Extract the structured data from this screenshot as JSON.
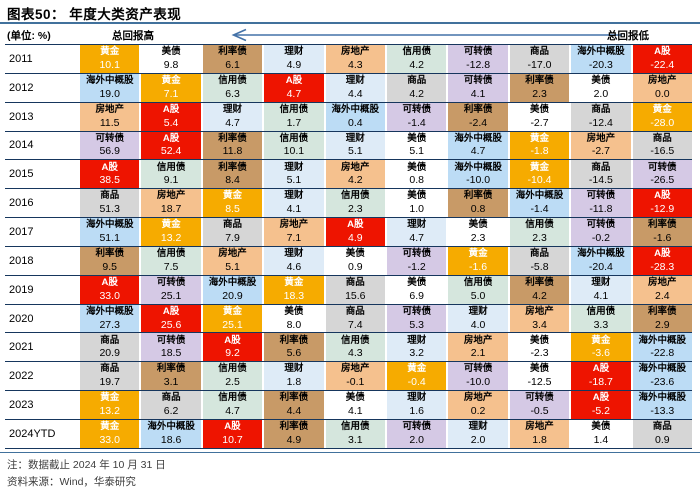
{
  "figure": {
    "title": "图表50： 年度大类资产表现",
    "unit_label": "(单位: %)",
    "high_label": "总回报高",
    "low_label": "总回报低",
    "note": "注：数据截止 2024 年 10 月 31 日",
    "source": "资料来源：Wind，华泰研究"
  },
  "colors": {
    "accent_line": "#41719C",
    "row_divider": "#16365D",
    "arrow": "#4472A8"
  },
  "assets": {
    "黄金": {
      "bg": "#F6AB00",
      "fg": "#FFFFFF"
    },
    "美债": {
      "bg": "#FFFFFF",
      "fg": "#000000"
    },
    "利率债": {
      "bg": "#C89A67",
      "fg": "#000000"
    },
    "理财": {
      "bg": "#DEEBF7",
      "fg": "#000000"
    },
    "房地产": {
      "bg": "#F5C18E",
      "fg": "#000000"
    },
    "信用债": {
      "bg": "#D5E6DD",
      "fg": "#000000"
    },
    "可转债": {
      "bg": "#D5C9E5",
      "fg": "#000000"
    },
    "商品": {
      "bg": "#D6D6D6",
      "fg": "#000000"
    },
    "海外中概股": {
      "bg": "#BCDCF5",
      "fg": "#000000"
    },
    "A股": {
      "bg": "#EE1400",
      "fg": "#FFFFFF"
    }
  },
  "chart_data": {
    "type": "table",
    "title": "年度大类资产表现",
    "unit": "%",
    "layout_hint": "each row = one year; 10 asset cells sorted left-to-right from highest to lowest total return",
    "rows": [
      {
        "year": "2011",
        "cells": [
          {
            "asset": "黄金",
            "value": "10.1"
          },
          {
            "asset": "美债",
            "value": "9.8"
          },
          {
            "asset": "利率债",
            "value": "6.1"
          },
          {
            "asset": "理财",
            "value": "4.9"
          },
          {
            "asset": "房地产",
            "value": "4.3"
          },
          {
            "asset": "信用债",
            "value": "4.2"
          },
          {
            "asset": "可转债",
            "value": "-12.8"
          },
          {
            "asset": "商品",
            "value": "-17.0"
          },
          {
            "asset": "海外中概股",
            "value": "-20.3"
          },
          {
            "asset": "A股",
            "value": "-22.4"
          }
        ]
      },
      {
        "year": "2012",
        "cells": [
          {
            "asset": "海外中概股",
            "value": "19.0"
          },
          {
            "asset": "黄金",
            "value": "7.1"
          },
          {
            "asset": "信用债",
            "value": "6.3"
          },
          {
            "asset": "A股",
            "value": "4.7"
          },
          {
            "asset": "理财",
            "value": "4.4"
          },
          {
            "asset": "商品",
            "value": "4.2"
          },
          {
            "asset": "可转债",
            "value": "4.1"
          },
          {
            "asset": "利率债",
            "value": "2.3"
          },
          {
            "asset": "美债",
            "value": "2.0"
          },
          {
            "asset": "房地产",
            "value": "0.0"
          }
        ]
      },
      {
        "year": "2013",
        "cells": [
          {
            "asset": "房地产",
            "value": "11.5"
          },
          {
            "asset": "A股",
            "value": "5.4"
          },
          {
            "asset": "理财",
            "value": "4.7"
          },
          {
            "asset": "信用债",
            "value": "1.7"
          },
          {
            "asset": "海外中概股",
            "value": "0.4"
          },
          {
            "asset": "可转债",
            "value": "-1.4"
          },
          {
            "asset": "利率债",
            "value": "-2.4"
          },
          {
            "asset": "美债",
            "value": "-2.7"
          },
          {
            "asset": "商品",
            "value": "-12.4"
          },
          {
            "asset": "黄金",
            "value": "-28.0"
          }
        ]
      },
      {
        "year": "2014",
        "cells": [
          {
            "asset": "可转债",
            "value": "56.9"
          },
          {
            "asset": "A股",
            "value": "52.4"
          },
          {
            "asset": "利率债",
            "value": "11.8"
          },
          {
            "asset": "信用债",
            "value": "10.1"
          },
          {
            "asset": "理财",
            "value": "5.1"
          },
          {
            "asset": "美债",
            "value": "5.1"
          },
          {
            "asset": "海外中概股",
            "value": "4.7"
          },
          {
            "asset": "黄金",
            "value": "-1.8"
          },
          {
            "asset": "房地产",
            "value": "-2.7"
          },
          {
            "asset": "商品",
            "value": "-16.5"
          }
        ]
      },
      {
        "year": "2015",
        "cells": [
          {
            "asset": "A股",
            "value": "38.5"
          },
          {
            "asset": "信用债",
            "value": "9.1"
          },
          {
            "asset": "利率债",
            "value": "8.4"
          },
          {
            "asset": "理财",
            "value": "5.1"
          },
          {
            "asset": "房地产",
            "value": "4.2"
          },
          {
            "asset": "美债",
            "value": "0.8"
          },
          {
            "asset": "海外中概股",
            "value": "-10.0"
          },
          {
            "asset": "黄金",
            "value": "-10.4"
          },
          {
            "asset": "商品",
            "value": "-14.5"
          },
          {
            "asset": "可转债",
            "value": "-26.5"
          }
        ]
      },
      {
        "year": "2016",
        "cells": [
          {
            "asset": "商品",
            "value": "51.3"
          },
          {
            "asset": "房地产",
            "value": "18.7"
          },
          {
            "asset": "黄金",
            "value": "8.5"
          },
          {
            "asset": "理财",
            "value": "4.1"
          },
          {
            "asset": "信用债",
            "value": "2.3"
          },
          {
            "asset": "美债",
            "value": "1.0"
          },
          {
            "asset": "利率债",
            "value": "0.8"
          },
          {
            "asset": "海外中概股",
            "value": "-1.4"
          },
          {
            "asset": "可转债",
            "value": "-11.8"
          },
          {
            "asset": "A股",
            "value": "-12.9"
          }
        ]
      },
      {
        "year": "2017",
        "cells": [
          {
            "asset": "海外中概股",
            "value": "51.1"
          },
          {
            "asset": "黄金",
            "value": "13.2"
          },
          {
            "asset": "商品",
            "value": "7.9"
          },
          {
            "asset": "房地产",
            "value": "7.1"
          },
          {
            "asset": "A股",
            "value": "4.9"
          },
          {
            "asset": "理财",
            "value": "4.7"
          },
          {
            "asset": "美债",
            "value": "2.3"
          },
          {
            "asset": "信用债",
            "value": "2.3"
          },
          {
            "asset": "可转债",
            "value": "-0.2"
          },
          {
            "asset": "利率债",
            "value": "-1.6"
          }
        ]
      },
      {
        "year": "2018",
        "cells": [
          {
            "asset": "利率债",
            "value": "9.5"
          },
          {
            "asset": "信用债",
            "value": "7.5"
          },
          {
            "asset": "房地产",
            "value": "5.1"
          },
          {
            "asset": "理财",
            "value": "4.6"
          },
          {
            "asset": "美债",
            "value": "0.9"
          },
          {
            "asset": "可转债",
            "value": "-1.2"
          },
          {
            "asset": "黄金",
            "value": "-1.6"
          },
          {
            "asset": "商品",
            "value": "-5.8"
          },
          {
            "asset": "海外中概股",
            "value": "-20.4"
          },
          {
            "asset": "A股",
            "value": "-28.3"
          }
        ]
      },
      {
        "year": "2019",
        "cells": [
          {
            "asset": "A股",
            "value": "33.0"
          },
          {
            "asset": "可转债",
            "value": "25.1"
          },
          {
            "asset": "海外中概股",
            "value": "20.9"
          },
          {
            "asset": "黄金",
            "value": "18.3"
          },
          {
            "asset": "商品",
            "value": "15.6"
          },
          {
            "asset": "美债",
            "value": "6.9"
          },
          {
            "asset": "信用债",
            "value": "5.0"
          },
          {
            "asset": "利率债",
            "value": "4.2"
          },
          {
            "asset": "理财",
            "value": "4.1"
          },
          {
            "asset": "房地产",
            "value": "2.4"
          }
        ]
      },
      {
        "year": "2020",
        "cells": [
          {
            "asset": "海外中概股",
            "value": "27.3"
          },
          {
            "asset": "A股",
            "value": "25.6"
          },
          {
            "asset": "黄金",
            "value": "25.1"
          },
          {
            "asset": "美债",
            "value": "8.0"
          },
          {
            "asset": "商品",
            "value": "7.4"
          },
          {
            "asset": "可转债",
            "value": "5.3"
          },
          {
            "asset": "理财",
            "value": "4.0"
          },
          {
            "asset": "房地产",
            "value": "3.4"
          },
          {
            "asset": "信用债",
            "value": "3.3"
          },
          {
            "asset": "利率债",
            "value": "2.9"
          }
        ]
      },
      {
        "year": "2021",
        "cells": [
          {
            "asset": "商品",
            "value": "20.9"
          },
          {
            "asset": "可转债",
            "value": "18.5"
          },
          {
            "asset": "A股",
            "value": "9.2"
          },
          {
            "asset": "利率债",
            "value": "5.6"
          },
          {
            "asset": "信用债",
            "value": "4.3"
          },
          {
            "asset": "理财",
            "value": "3.2"
          },
          {
            "asset": "房地产",
            "value": "2.1"
          },
          {
            "asset": "美债",
            "value": "-2.3"
          },
          {
            "asset": "黄金",
            "value": "-3.6"
          },
          {
            "asset": "海外中概股",
            "value": "-22.8"
          }
        ]
      },
      {
        "year": "2022",
        "cells": [
          {
            "asset": "商品",
            "value": "19.7"
          },
          {
            "asset": "利率债",
            "value": "3.1"
          },
          {
            "asset": "信用债",
            "value": "2.5"
          },
          {
            "asset": "理财",
            "value": "1.8"
          },
          {
            "asset": "房地产",
            "value": "-0.1"
          },
          {
            "asset": "黄金",
            "value": "-0.4"
          },
          {
            "asset": "可转债",
            "value": "-10.0"
          },
          {
            "asset": "美债",
            "value": "-12.5"
          },
          {
            "asset": "A股",
            "value": "-18.7"
          },
          {
            "asset": "海外中概股",
            "value": "-23.6"
          }
        ]
      },
      {
        "year": "2023",
        "cells": [
          {
            "asset": "黄金",
            "value": "13.2"
          },
          {
            "asset": "商品",
            "value": "6.2"
          },
          {
            "asset": "信用债",
            "value": "4.7"
          },
          {
            "asset": "利率债",
            "value": "4.4"
          },
          {
            "asset": "美债",
            "value": "4.1"
          },
          {
            "asset": "理财",
            "value": "1.6"
          },
          {
            "asset": "房地产",
            "value": "0.2"
          },
          {
            "asset": "可转债",
            "value": "-0.5"
          },
          {
            "asset": "A股",
            "value": "-5.2"
          },
          {
            "asset": "海外中概股",
            "value": "-13.3"
          }
        ]
      },
      {
        "year": "2024YTD",
        "cells": [
          {
            "asset": "黄金",
            "value": "33.0"
          },
          {
            "asset": "海外中概股",
            "value": "18.6"
          },
          {
            "asset": "A股",
            "value": "10.7"
          },
          {
            "asset": "利率债",
            "value": "4.9"
          },
          {
            "asset": "信用债",
            "value": "3.1"
          },
          {
            "asset": "可转债",
            "value": "2.0"
          },
          {
            "asset": "理财",
            "value": "2.0"
          },
          {
            "asset": "房地产",
            "value": "1.8"
          },
          {
            "asset": "美债",
            "value": "1.4"
          },
          {
            "asset": "商品",
            "value": "0.9"
          }
        ]
      }
    ]
  }
}
